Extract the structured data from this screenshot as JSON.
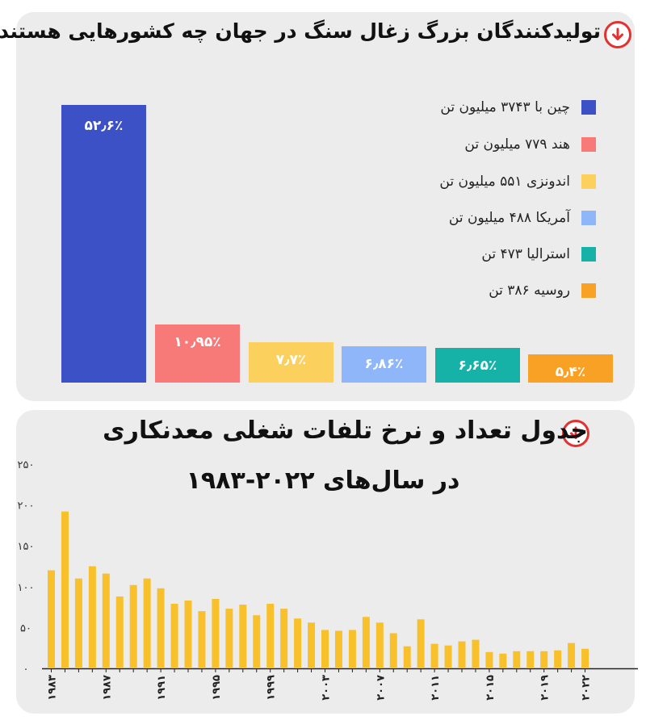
{
  "header1": {
    "title": "تولیدکنندگان بزرگ زغال سنگ در جهان چه کشورهایی هستند؟"
  },
  "header2": {
    "title_line1": "جدول تعداد و نرخ تلفات شغلی معدنکاری",
    "title_line2": "در سال‌های ۲۰۲۲-۱۹۸۳"
  },
  "chart_data": [
    {
      "type": "bar",
      "categories": [
        "چین با ۳۷۴۳ میلیون تن",
        "هند ۷۷۹ میلیون تن",
        "اندونزی ۵۵۱ میلیون تن",
        "آمریکا ۴۸۸ میلیون تن",
        "استرالیا ۴۷۳ تن",
        "روسیه ۳۸۶ تن"
      ],
      "values": [
        52.6,
        10.95,
        7.7,
        6.86,
        6.65,
        5.4
      ],
      "value_labels": [
        "۵۲٫۶٪",
        "۱۰٫۹۵٪",
        "۷٫۷٪",
        "۶٫۸۶٪",
        "۶٫۶۵٪",
        "۵٫۴٪"
      ],
      "colors": [
        "#3d51c6",
        "#f87a78",
        "#fcd05c",
        "#8fb6f8",
        "#16b2a8",
        "#f8a124"
      ],
      "legend_position": "top-right",
      "title": "تولیدکنندگان بزرگ زغال سنگ در جهان چه کشورهایی هستند؟"
    },
    {
      "type": "bar",
      "x": [
        1983,
        1984,
        1985,
        1986,
        1987,
        1988,
        1989,
        1990,
        1991,
        1992,
        1993,
        1994,
        1995,
        1996,
        1997,
        1998,
        1999,
        2000,
        2001,
        2002,
        2003,
        2004,
        2005,
        2006,
        2007,
        2008,
        2009,
        2010,
        2011,
        2012,
        2013,
        2014,
        2015,
        2016,
        2017,
        2018,
        2019,
        2020,
        2021,
        2022
      ],
      "values": [
        120,
        192,
        110,
        125,
        116,
        88,
        102,
        110,
        98,
        79,
        83,
        70,
        85,
        73,
        78,
        65,
        79,
        73,
        61,
        56,
        47,
        46,
        47,
        63,
        56,
        43,
        27,
        60,
        30,
        28,
        33,
        35,
        20,
        18,
        21,
        21,
        21,
        22,
        31,
        24
      ],
      "tick_labels": [
        "۱۹۸۳",
        "۱۹۸۷",
        "۱۹۹۱",
        "۱۹۹۵",
        "۱۹۹۹",
        "۲۰۰۳",
        "۲۰۰۷",
        "۲۰۱۱",
        "۲۰۱۵",
        "۲۰۱۹",
        "۲۰۲۲"
      ],
      "y_ticks": [
        "۰",
        "۵۰",
        "۱۰۰",
        "۱۵۰",
        "۲۰۰",
        "۲۵۰"
      ],
      "ylim": [
        0,
        250
      ],
      "color": "#f8c02a",
      "title": "جدول تعداد و نرخ تلفات شغلی معدنکاری در سال‌های ۲۰۲۲-۱۹۸۳"
    }
  ],
  "colors": {
    "panel_bg": "#ececec",
    "icon_ring": "#e53030"
  },
  "icons": [
    "arrow-down-circle-icon",
    "arrow-down-circle-icon"
  ]
}
